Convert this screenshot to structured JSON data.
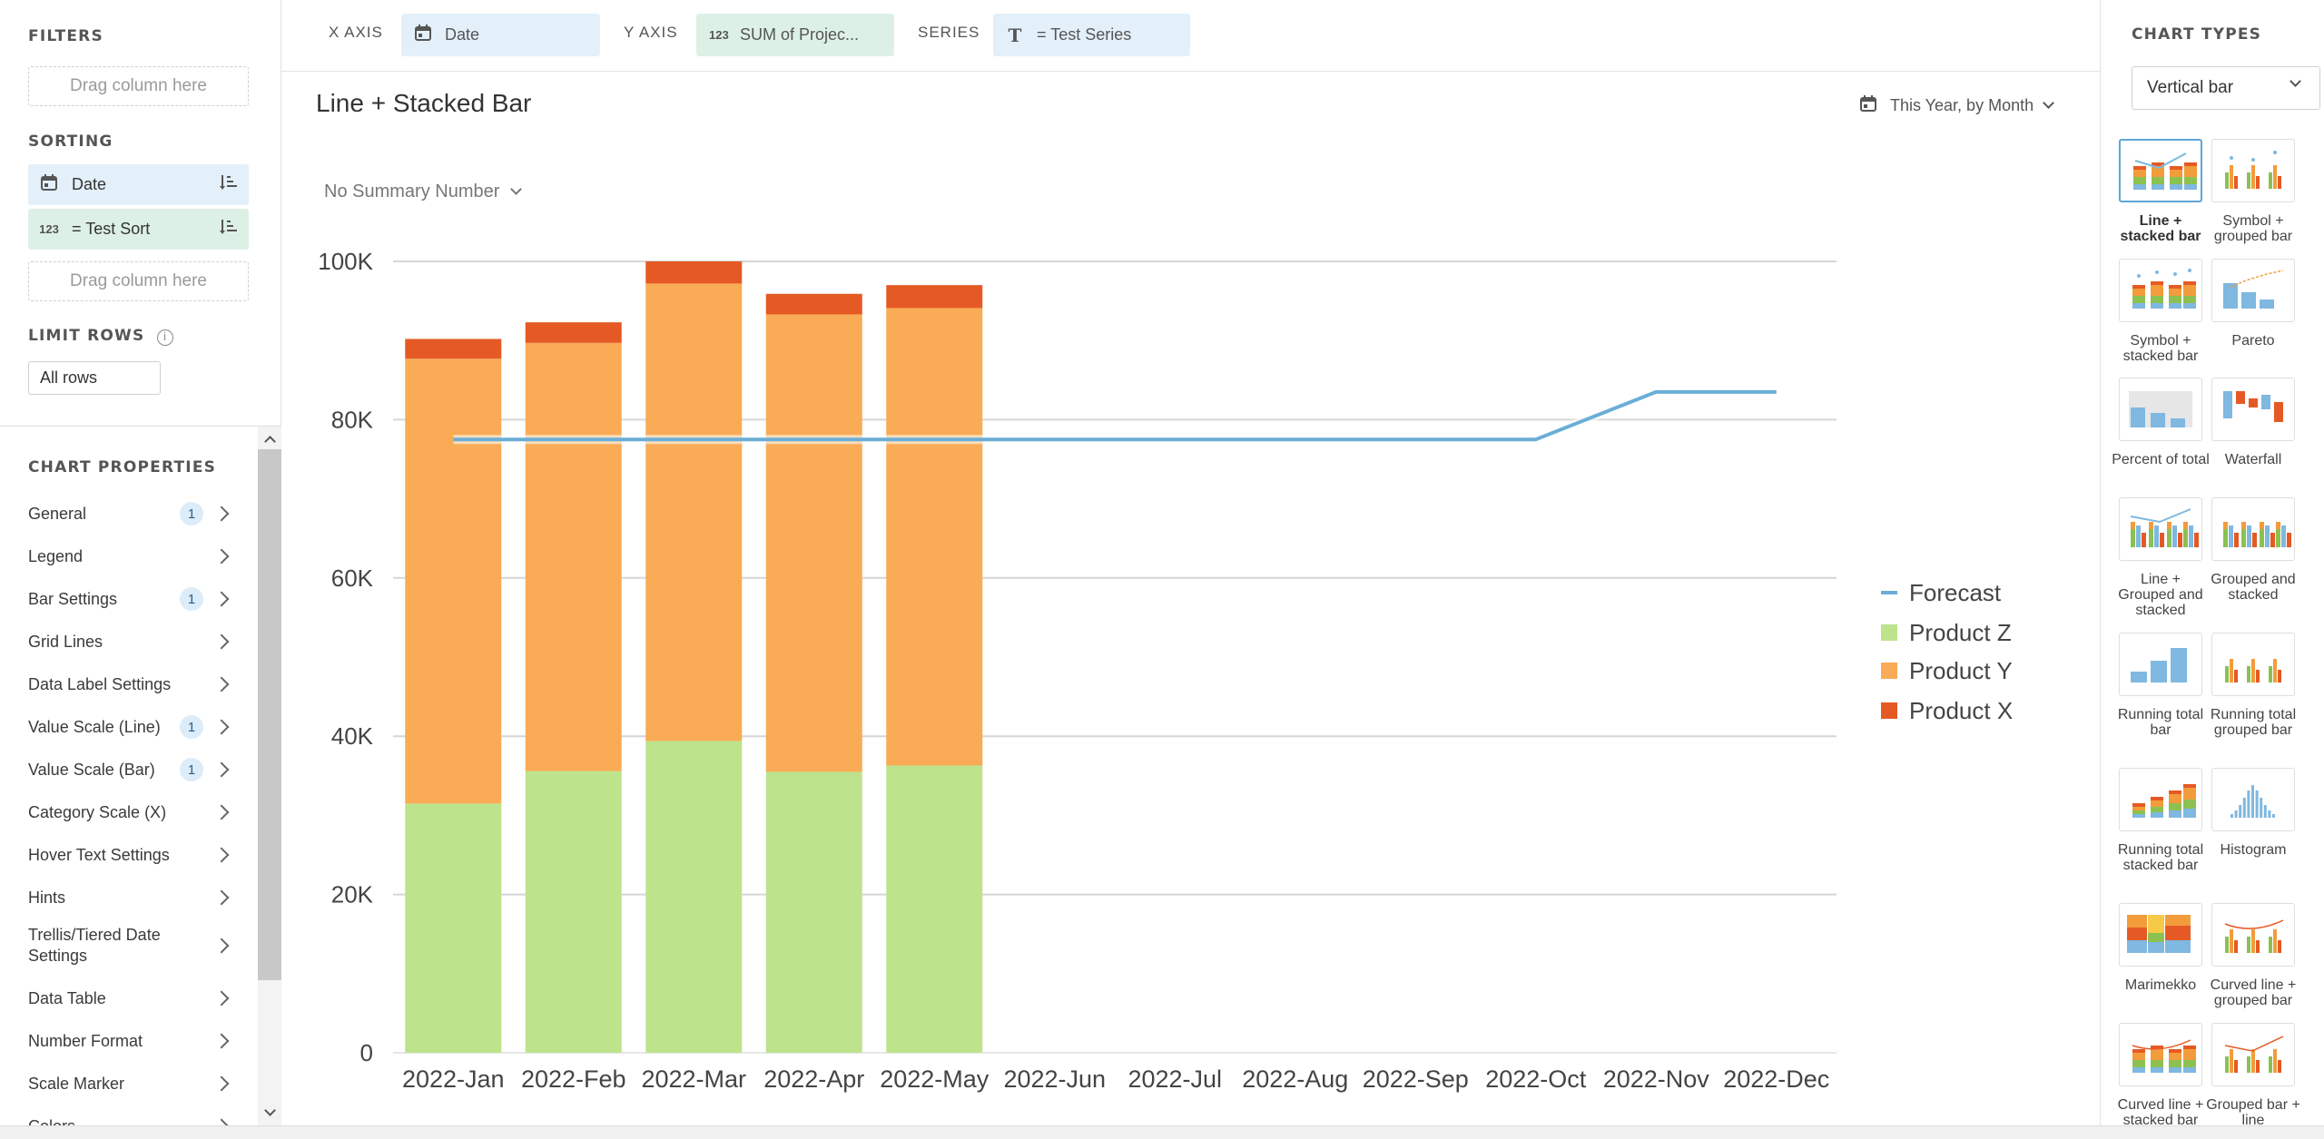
{
  "left": {
    "filters_title": "FILTERS",
    "filters_drop": "Drag column here",
    "sorting_title": "SORTING",
    "sort_items": [
      {
        "icon": "calendar-icon",
        "glyph": "▦",
        "label": "Date"
      },
      {
        "icon": "number-icon",
        "glyph": "123",
        "label": "= Test Sort"
      }
    ],
    "sorting_drop": "Drag column here",
    "limit_title": "LIMIT ROWS",
    "limit_value": "All rows",
    "props_title": "CHART PROPERTIES",
    "props": [
      {
        "label": "General",
        "badge": "1"
      },
      {
        "label": "Legend",
        "badge": ""
      },
      {
        "label": "Bar Settings",
        "badge": "1"
      },
      {
        "label": "Grid Lines",
        "badge": ""
      },
      {
        "label": "Data Label Settings",
        "badge": ""
      },
      {
        "label": "Value Scale (Line)",
        "badge": "1"
      },
      {
        "label": "Value Scale (Bar)",
        "badge": "1"
      },
      {
        "label": "Category Scale (X)",
        "badge": ""
      },
      {
        "label": "Hover Text Settings",
        "badge": ""
      },
      {
        "label": "Hints",
        "badge": ""
      },
      {
        "label": "Trellis/Tiered Date Settings",
        "badge": ""
      },
      {
        "label": "Data Table",
        "badge": ""
      },
      {
        "label": "Number Format",
        "badge": ""
      },
      {
        "label": "Scale Marker",
        "badge": ""
      },
      {
        "label": "Colors",
        "badge": ""
      }
    ]
  },
  "topbar": {
    "x_label": "X AXIS",
    "x_value": "Date",
    "y_label": "Y AXIS",
    "y_value": "SUM of Projec...",
    "series_label": "SERIES",
    "series_value": "= Test Series"
  },
  "chart_header": {
    "title": "Line + Stacked Bar",
    "date_filter": "This Year, by Month",
    "summary": "No Summary Number"
  },
  "colors": {
    "product_z": "#bde38d",
    "product_y": "#f9ab55",
    "product_x": "#e55a24",
    "forecast": "#6aaed6",
    "grid": "#d6d6d6",
    "chip_blue": "#e3f0fa",
    "chip_green": "#ddf0e6"
  },
  "chart_data": {
    "type": "bar",
    "stacked": true,
    "categories": [
      "2022-Jan",
      "2022-Feb",
      "2022-Mar",
      "2022-Apr",
      "2022-May",
      "2022-Jun",
      "2022-Jul",
      "2022-Aug",
      "2022-Sep",
      "2022-Oct",
      "2022-Nov",
      "2022-Dec"
    ],
    "ylim": [
      0,
      100000
    ],
    "yticks": [
      0,
      20000,
      40000,
      60000,
      80000,
      100000
    ],
    "ytick_labels": [
      "0",
      "20K",
      "40K",
      "60K",
      "80K",
      "100K"
    ],
    "grid": true,
    "legend_position": "right",
    "series": [
      {
        "name": "Product Z",
        "kind": "bar",
        "values": [
          31500,
          35600,
          39400,
          35500,
          36300,
          null,
          null,
          null,
          null,
          null,
          null,
          null
        ]
      },
      {
        "name": "Product Y",
        "kind": "bar",
        "values": [
          56200,
          54100,
          57800,
          57800,
          57800,
          null,
          null,
          null,
          null,
          null,
          null,
          null
        ]
      },
      {
        "name": "Product X",
        "kind": "bar",
        "values": [
          2500,
          2600,
          2800,
          2600,
          2900,
          null,
          null,
          null,
          null,
          null,
          null,
          null
        ]
      },
      {
        "name": "Forecast",
        "kind": "line",
        "values": [
          77500,
          77500,
          77500,
          77500,
          77500,
          77500,
          77500,
          77500,
          77500,
          77500,
          83500,
          83500
        ]
      }
    ]
  },
  "chart_types": {
    "title": "CHART TYPES",
    "selected_type": "Vertical bar",
    "items": [
      {
        "label": "Line + stacked bar",
        "thumb": "line-stacked",
        "selected": true
      },
      {
        "label": "Symbol + grouped bar",
        "thumb": "symbol-grouped",
        "selected": false
      },
      {
        "label": "Symbol + stacked bar",
        "thumb": "symbol-stacked",
        "selected": false
      },
      {
        "label": "Pareto",
        "thumb": "pareto",
        "selected": false
      },
      {
        "label": "Percent of total",
        "thumb": "percent",
        "selected": false
      },
      {
        "label": "Waterfall",
        "thumb": "waterfall",
        "selected": false
      },
      {
        "label": "Line + Grouped and stacked",
        "thumb": "line-grouped-stacked",
        "selected": false
      },
      {
        "label": "Grouped and stacked",
        "thumb": "grouped-stacked",
        "selected": false
      },
      {
        "label": "Running total bar",
        "thumb": "running",
        "selected": false
      },
      {
        "label": "Running total grouped bar",
        "thumb": "running-grouped",
        "selected": false
      },
      {
        "label": "Running total stacked bar",
        "thumb": "running-stacked",
        "selected": false
      },
      {
        "label": "Histogram",
        "thumb": "histogram",
        "selected": false
      },
      {
        "label": "Marimekko",
        "thumb": "marimekko",
        "selected": false
      },
      {
        "label": "Curved line + grouped bar",
        "thumb": "curved-grouped",
        "selected": false
      },
      {
        "label": "Curved line + stacked bar",
        "thumb": "curved-stacked",
        "selected": false
      },
      {
        "label": "Grouped bar + line",
        "thumb": "grouped-line",
        "selected": false
      }
    ]
  }
}
